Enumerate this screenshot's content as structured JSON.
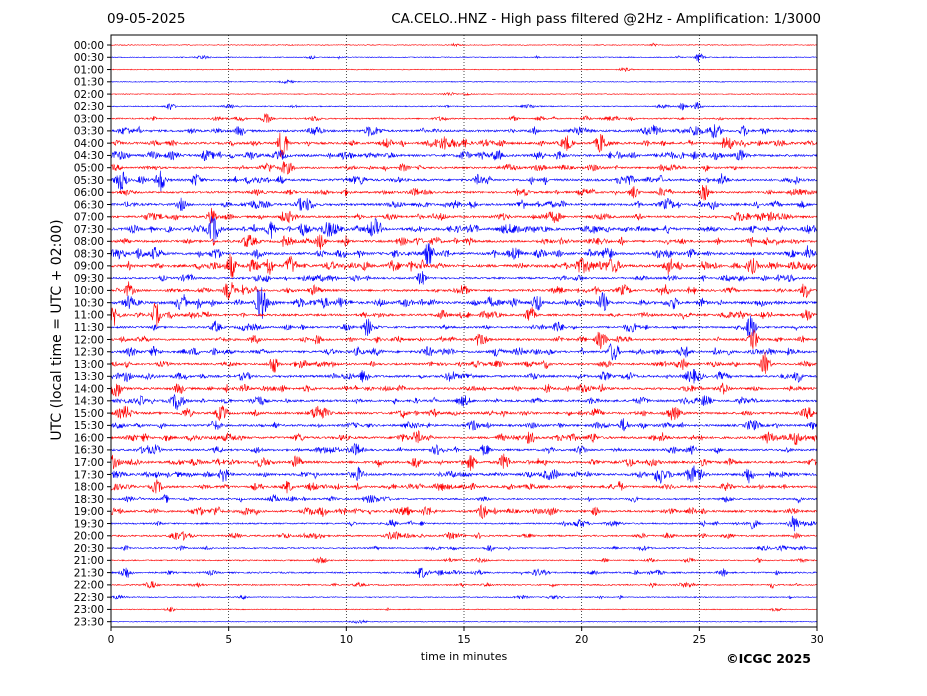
{
  "header": {
    "date": "09-05-2025",
    "title": "CA.CELO..HNZ - High pass filtered @2Hz - Amplification: 1/3000"
  },
  "footer": {
    "copyright": "©ICGC 2025"
  },
  "chart_data": {
    "type": "line",
    "title": "CA.CELO..HNZ - High pass filtered @2Hz - Amplification: 1/3000",
    "xlabel": "time in minutes",
    "ylabel": "UTC (local time = UTC + 02:00)",
    "xlim": [
      0,
      30
    ],
    "x_ticks": [
      "0",
      "5",
      "10",
      "15",
      "20",
      "25",
      "30"
    ],
    "x_tick_values": [
      0,
      5,
      10,
      15,
      20,
      25,
      30
    ],
    "grid_vertical": true,
    "row_labels": [
      "00:00",
      "00:30",
      "01:00",
      "01:30",
      "02:00",
      "02:30",
      "03:00",
      "03:30",
      "04:00",
      "04:30",
      "05:00",
      "05:30",
      "06:00",
      "06:30",
      "07:00",
      "07:30",
      "08:00",
      "08:30",
      "09:00",
      "09:30",
      "10:00",
      "10:30",
      "11:00",
      "11:30",
      "12:00",
      "12:30",
      "13:00",
      "13:30",
      "14:00",
      "14:30",
      "15:00",
      "15:30",
      "16:00",
      "16:30",
      "17:00",
      "17:30",
      "18:00",
      "18:30",
      "19:00",
      "19:30",
      "20:00",
      "20:30",
      "21:00",
      "21:30",
      "22:00",
      "22:30",
      "23:00",
      "23:30"
    ],
    "row_activity": [
      0.05,
      0.1,
      0.03,
      0.03,
      0.05,
      0.15,
      0.3,
      0.7,
      0.75,
      0.8,
      0.55,
      0.8,
      0.6,
      0.75,
      0.7,
      0.9,
      0.75,
      0.9,
      1.0,
      0.55,
      0.7,
      0.95,
      0.7,
      0.6,
      0.65,
      0.75,
      0.6,
      0.75,
      0.75,
      0.7,
      0.75,
      0.7,
      0.75,
      0.6,
      0.8,
      0.8,
      0.7,
      0.45,
      0.7,
      0.4,
      0.45,
      0.3,
      0.25,
      0.4,
      0.3,
      0.15,
      0.05,
      0.03
    ],
    "events": [
      {
        "row": 1,
        "minute": 25.0,
        "amplitude": 5
      },
      {
        "row": 5,
        "minute": 2.5,
        "amplitude": 4
      },
      {
        "row": 5,
        "minute": 24.9,
        "amplitude": 4
      },
      {
        "row": 6,
        "minute": 6.6,
        "amplitude": 5
      },
      {
        "row": 7,
        "minute": 11.0,
        "amplitude": 5
      },
      {
        "row": 7,
        "minute": 26.9,
        "amplitude": 5
      },
      {
        "row": 8,
        "minute": 7.3,
        "amplitude": 18
      },
      {
        "row": 8,
        "minute": 20.8,
        "amplitude": 7
      },
      {
        "row": 8,
        "minute": 14.2,
        "amplitude": 8
      },
      {
        "row": 9,
        "minute": 18.2,
        "amplitude": 6
      },
      {
        "row": 10,
        "minute": 7.4,
        "amplitude": 7
      },
      {
        "row": 11,
        "minute": 2.1,
        "amplitude": 12
      },
      {
        "row": 11,
        "minute": 0.5,
        "amplitude": 7
      },
      {
        "row": 12,
        "minute": 25.2,
        "amplitude": 8
      },
      {
        "row": 13,
        "minute": 3.0,
        "amplitude": 6
      },
      {
        "row": 14,
        "minute": 4.3,
        "amplitude": 8
      },
      {
        "row": 15,
        "minute": 4.3,
        "amplitude": 11
      },
      {
        "row": 15,
        "minute": 11.2,
        "amplitude": 10
      },
      {
        "row": 15,
        "minute": 6.8,
        "amplitude": 9
      },
      {
        "row": 16,
        "minute": 8.9,
        "amplitude": 8
      },
      {
        "row": 17,
        "minute": 13.5,
        "amplitude": 9
      },
      {
        "row": 17,
        "minute": 21.1,
        "amplitude": 9
      },
      {
        "row": 18,
        "minute": 6.7,
        "amplitude": 10
      },
      {
        "row": 18,
        "minute": 7.6,
        "amplitude": 10
      },
      {
        "row": 18,
        "minute": 5.1,
        "amplitude": 13
      },
      {
        "row": 18,
        "minute": 23.7,
        "amplitude": 9
      },
      {
        "row": 19,
        "minute": 13.2,
        "amplitude": 7
      },
      {
        "row": 20,
        "minute": 5.0,
        "amplitude": 9
      },
      {
        "row": 20,
        "minute": 29.5,
        "amplitude": 8
      },
      {
        "row": 21,
        "minute": 6.4,
        "amplitude": 8
      },
      {
        "row": 21,
        "minute": 18.1,
        "amplitude": 9
      },
      {
        "row": 21,
        "minute": 20.9,
        "amplitude": 10
      },
      {
        "row": 22,
        "minute": 1.9,
        "amplitude": 12
      },
      {
        "row": 22,
        "minute": 17.8,
        "amplitude": 9
      },
      {
        "row": 23,
        "minute": 10.9,
        "amplitude": 9
      },
      {
        "row": 23,
        "minute": 27.2,
        "amplitude": 12
      },
      {
        "row": 24,
        "minute": 20.8,
        "amplitude": 9
      },
      {
        "row": 24,
        "minute": 27.3,
        "amplitude": 10
      },
      {
        "row": 25,
        "minute": 21.3,
        "amplitude": 9
      },
      {
        "row": 26,
        "minute": 6.9,
        "amplitude": 9
      },
      {
        "row": 26,
        "minute": 27.8,
        "amplitude": 12
      },
      {
        "row": 27,
        "minute": 29.2,
        "amplitude": 6
      },
      {
        "row": 28,
        "minute": 0.2,
        "amplitude": 8
      },
      {
        "row": 28,
        "minute": 2.9,
        "amplitude": 6
      },
      {
        "row": 30,
        "minute": 4.7,
        "amplitude": 7
      },
      {
        "row": 31,
        "minute": 21.8,
        "amplitude": 7
      },
      {
        "row": 32,
        "minute": 13.0,
        "amplitude": 7
      },
      {
        "row": 33,
        "minute": 15.9,
        "amplitude": 6
      },
      {
        "row": 34,
        "minute": 15.3,
        "amplitude": 8
      },
      {
        "row": 34,
        "minute": 7.9,
        "amplitude": 7
      },
      {
        "row": 35,
        "minute": 4.8,
        "amplitude": 8
      },
      {
        "row": 35,
        "minute": 27.1,
        "amplitude": 9
      },
      {
        "row": 35,
        "minute": 23.3,
        "amplitude": 7
      },
      {
        "row": 36,
        "minute": 7.5,
        "amplitude": 6
      },
      {
        "row": 36,
        "minute": 1.9,
        "amplitude": 6
      },
      {
        "row": 38,
        "minute": 15.8,
        "amplitude": 8
      },
      {
        "row": 38,
        "minute": 12.5,
        "amplitude": 6
      },
      {
        "row": 39,
        "minute": 29.0,
        "amplitude": 6
      },
      {
        "row": 40,
        "minute": 2.7,
        "amplitude": 5
      },
      {
        "row": 43,
        "minute": 13.2,
        "amplitude": 6
      },
      {
        "row": 43,
        "minute": 0.6,
        "amplitude": 5
      },
      {
        "row": 46,
        "minute": 2.5,
        "amplitude": 3
      }
    ]
  }
}
